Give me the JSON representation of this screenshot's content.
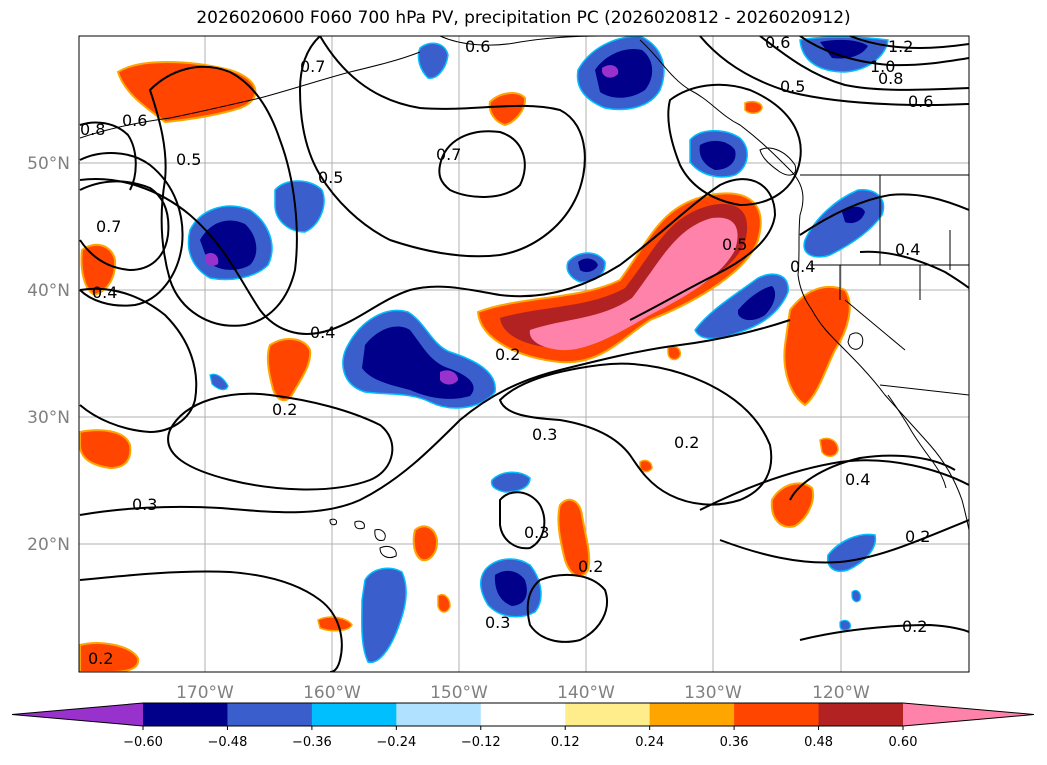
{
  "title": "2026020600 F060 700 hPa PV, precipitation PC (2026020812 - 2026020912)",
  "lat_labels": [
    "50°N",
    "40°N",
    "30°N",
    "20°N"
  ],
  "lon_labels": [
    "170°W",
    "160°W",
    "150°W",
    "140°W",
    "130°W",
    "120°W"
  ],
  "contour_labels": [
    "0.6",
    "0.7",
    "0.6",
    "0.5",
    "0.5",
    "0.7",
    "0.7",
    "0.4",
    "0.4",
    "0.2",
    "0.5",
    "0.2",
    "0.3",
    "0.3",
    "0.2",
    "0.3",
    "0.2",
    "0.4",
    "0.3",
    "0.2",
    "0.2",
    "0.2",
    "1.2",
    "1.0",
    "0.8",
    "0.6",
    "0.5",
    "0.8",
    "0.4",
    "0.6"
  ],
  "colorbar": {
    "ticks": [
      "−0.60",
      "−0.48",
      "−0.36",
      "−0.24",
      "−0.12",
      "0.12",
      "0.24",
      "0.36",
      "0.48",
      "0.60"
    ],
    "colors": [
      "#9932cc",
      "#00008b",
      "#3a5fcd",
      "#00bfff",
      "#b0e2ff",
      "#ffffff",
      "#ffec8b",
      "#ffa500",
      "#ff4500",
      "#b22222",
      "#ff82ab"
    ]
  }
}
